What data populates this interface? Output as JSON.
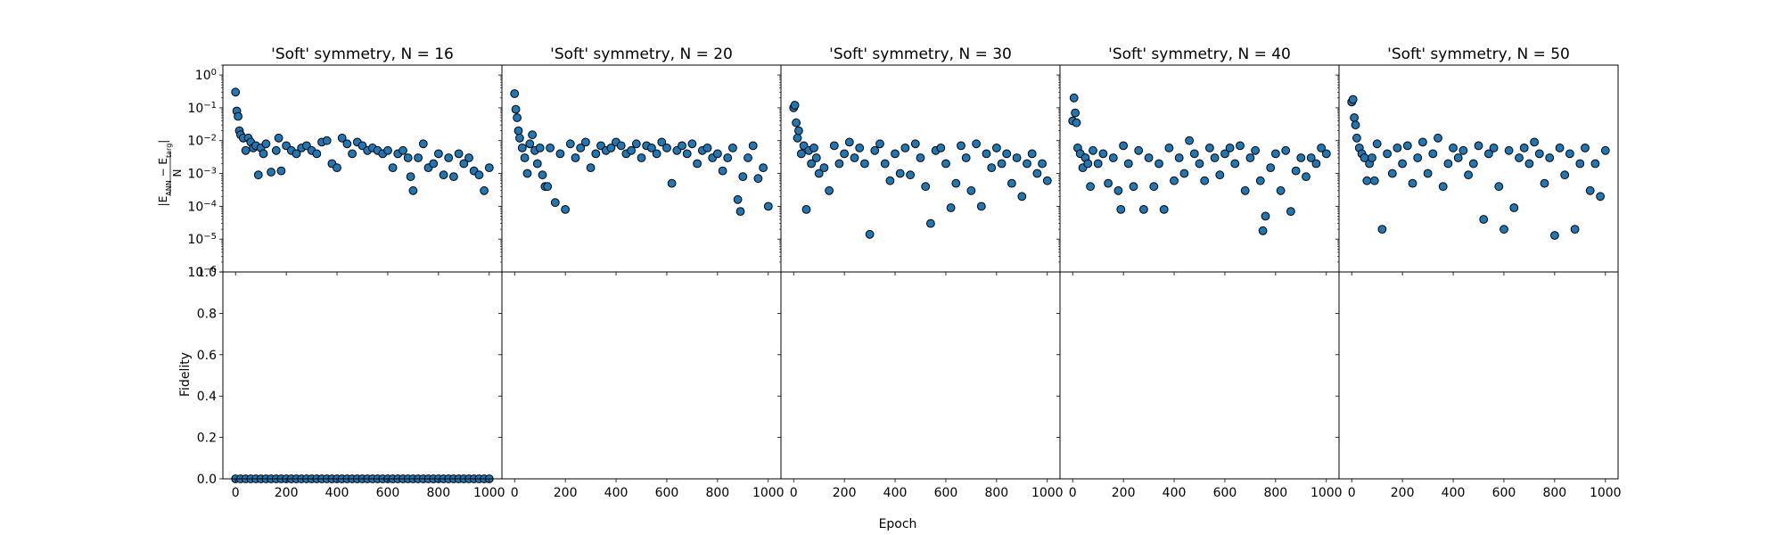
{
  "figure": {
    "xlabel": "Epoch",
    "ylabel_top": "|E_ANN − E_targ| / N",
    "ylabel_top_num": "|E",
    "ylabel_top_num_sub1": "ANN",
    "ylabel_top_num_mid": " − E",
    "ylabel_top_num_sub2": "targ",
    "ylabel_top_num_end": "|",
    "ylabel_top_den": "N",
    "ylabel_bottom": "Fidelity",
    "marker_fill": "#1f77b4",
    "marker_edge": "#000000"
  },
  "chart_data": [
    {
      "type": "scatter",
      "title": "'Soft' symmetry, N = 16",
      "N": 16,
      "xlabel": "Epoch",
      "xlim": [
        -50,
        1050
      ],
      "xticks": [
        0,
        200,
        400,
        600,
        800,
        1000
      ],
      "energy": {
        "ylabel": "|E_ANN − E_targ| / N",
        "yscale": "log",
        "ylim": [
          1e-06,
          2
        ],
        "ytick_exponents": [
          -6,
          -5,
          -4,
          -3,
          -2,
          -1,
          0
        ],
        "series": [
          {
            "x": [
              0,
              5,
              10,
              15,
              20,
              30,
              40,
              50,
              60,
              70,
              80,
              90,
              100,
              110,
              120,
              140,
              160,
              170,
              180,
              200,
              220,
              240,
              260,
              280,
              300,
              320,
              340,
              360,
              380,
              400,
              420,
              440,
              460,
              480,
              500,
              520,
              540,
              560,
              580,
              600,
              620,
              640,
              660,
              680,
              690,
              700,
              720,
              740,
              760,
              780,
              800,
              820,
              840,
              860,
              880,
              900,
              920,
              940,
              960,
              980,
              1000
            ],
            "y": [
              0.3,
              0.08,
              0.055,
              0.02,
              0.015,
              0.012,
              0.005,
              0.012,
              0.009,
              0.006,
              0.007,
              0.0009,
              0.006,
              0.004,
              0.008,
              0.0011,
              0.005,
              0.012,
              0.0012,
              0.007,
              0.005,
              0.004,
              0.006,
              0.007,
              0.005,
              0.004,
              0.009,
              0.01,
              0.002,
              0.0015,
              0.012,
              0.008,
              0.004,
              0.009,
              0.007,
              0.005,
              0.006,
              0.005,
              0.004,
              0.005,
              0.0015,
              0.004,
              0.005,
              0.003,
              0.0008,
              0.0003,
              0.003,
              0.008,
              0.0015,
              0.002,
              0.004,
              0.0009,
              0.003,
              0.0008,
              0.004,
              0.002,
              0.003,
              0.0012,
              0.0009,
              0.0003,
              0.0015
            ]
          }
        ]
      },
      "fidelity": {
        "ylabel": "Fidelity",
        "ylim": [
          0.0,
          1.0
        ],
        "yticks": [
          "0.0",
          "0.2",
          "0.4",
          "0.6",
          "0.8",
          "1.0"
        ],
        "series": [
          {
            "x_start": 0,
            "x_end": 1000,
            "x_step": 20,
            "value": 0.0
          }
        ]
      }
    },
    {
      "type": "scatter",
      "title": "'Soft' symmetry, N = 20",
      "N": 20,
      "xlabel": "Epoch",
      "xlim": [
        -50,
        1050
      ],
      "xticks": [
        0,
        200,
        400,
        600,
        800,
        1000
      ],
      "energy": {
        "yscale": "log",
        "ylim": [
          1e-06,
          2
        ],
        "series": [
          {
            "x": [
              0,
              5,
              10,
              15,
              20,
              30,
              40,
              50,
              60,
              70,
              80,
              90,
              100,
              110,
              120,
              130,
              140,
              160,
              180,
              200,
              220,
              240,
              260,
              280,
              300,
              320,
              340,
              360,
              380,
              400,
              420,
              440,
              460,
              480,
              500,
              520,
              540,
              560,
              580,
              600,
              620,
              640,
              660,
              680,
              700,
              720,
              740,
              760,
              780,
              800,
              820,
              840,
              860,
              880,
              890,
              900,
              920,
              940,
              960,
              980,
              1000
            ],
            "y": [
              0.27,
              0.09,
              0.05,
              0.02,
              0.012,
              0.006,
              0.003,
              0.001,
              0.008,
              0.015,
              0.005,
              0.002,
              0.006,
              0.0009,
              0.0004,
              0.0004,
              0.006,
              0.00013,
              0.004,
              8e-05,
              0.008,
              0.003,
              0.006,
              0.009,
              0.0015,
              0.004,
              0.007,
              0.005,
              0.006,
              0.009,
              0.007,
              0.004,
              0.005,
              0.008,
              0.003,
              0.007,
              0.006,
              0.004,
              0.009,
              0.006,
              0.0005,
              0.005,
              0.007,
              0.004,
              0.008,
              0.002,
              0.005,
              0.006,
              0.003,
              0.004,
              0.0012,
              0.003,
              0.006,
              0.00016,
              7e-05,
              0.0008,
              0.003,
              0.007,
              0.0007,
              0.0015,
              0.0001
            ]
          }
        ]
      },
      "fidelity": {
        "ylim": [
          0.0,
          1.0
        ],
        "series": []
      }
    },
    {
      "type": "scatter",
      "title": "'Soft' symmetry, N = 30",
      "N": 30,
      "xlabel": "Epoch",
      "xlim": [
        -50,
        1050
      ],
      "xticks": [
        0,
        200,
        400,
        600,
        800,
        1000
      ],
      "energy": {
        "yscale": "log",
        "ylim": [
          1e-06,
          2
        ],
        "series": [
          {
            "x": [
              0,
              5,
              10,
              15,
              20,
              30,
              40,
              50,
              60,
              70,
              80,
              90,
              100,
              120,
              140,
              160,
              180,
              200,
              220,
              240,
              260,
              280,
              300,
              320,
              340,
              360,
              380,
              400,
              420,
              440,
              460,
              480,
              500,
              520,
              540,
              560,
              580,
              600,
              620,
              640,
              660,
              680,
              700,
              720,
              740,
              760,
              780,
              800,
              820,
              840,
              860,
              880,
              900,
              920,
              940,
              960,
              980,
              1000
            ],
            "y": [
              0.1,
              0.12,
              0.035,
              0.012,
              0.02,
              0.004,
              0.007,
              8e-05,
              0.005,
              0.002,
              0.006,
              0.003,
              0.001,
              0.0015,
              0.0003,
              0.007,
              0.002,
              0.004,
              0.009,
              0.003,
              0.006,
              0.002,
              1.4e-05,
              0.005,
              0.008,
              0.002,
              0.0006,
              0.004,
              0.001,
              0.006,
              0.0009,
              0.008,
              0.003,
              0.0004,
              3e-05,
              0.005,
              0.006,
              0.002,
              9e-05,
              0.0005,
              0.007,
              0.003,
              0.0003,
              0.008,
              0.0001,
              0.004,
              0.0015,
              0.006,
              0.002,
              0.004,
              0.0005,
              0.003,
              0.0002,
              0.002,
              0.004,
              0.001,
              0.002,
              0.0006
            ]
          }
        ]
      },
      "fidelity": {
        "ylim": [
          0.0,
          1.0
        ],
        "series": []
      }
    },
    {
      "type": "scatter",
      "title": "'Soft' symmetry, N = 40",
      "N": 40,
      "xlabel": "Epoch",
      "xlim": [
        -50,
        1050
      ],
      "xticks": [
        0,
        200,
        400,
        600,
        800,
        1000
      ],
      "energy": {
        "yscale": "log",
        "ylim": [
          1e-06,
          2
        ],
        "series": [
          {
            "x": [
              0,
              5,
              10,
              15,
              20,
              30,
              40,
              50,
              60,
              70,
              80,
              100,
              120,
              140,
              160,
              180,
              190,
              200,
              220,
              240,
              260,
              280,
              300,
              320,
              340,
              360,
              380,
              400,
              420,
              440,
              460,
              480,
              500,
              520,
              540,
              560,
              580,
              600,
              620,
              640,
              660,
              680,
              700,
              720,
              740,
              750,
              760,
              780,
              800,
              820,
              840,
              860,
              880,
              900,
              920,
              940,
              960,
              980,
              1000
            ],
            "y": [
              0.04,
              0.2,
              0.07,
              0.035,
              0.006,
              0.004,
              0.0015,
              0.003,
              0.002,
              0.0004,
              0.005,
              0.002,
              0.004,
              0.0005,
              0.003,
              0.0003,
              8e-05,
              0.007,
              0.002,
              0.0004,
              0.005,
              8e-05,
              0.003,
              0.0004,
              0.002,
              8e-05,
              0.006,
              0.0006,
              0.003,
              0.001,
              0.01,
              0.004,
              0.002,
              0.0006,
              0.006,
              0.003,
              0.0009,
              0.004,
              0.006,
              0.002,
              0.007,
              0.0003,
              0.003,
              0.005,
              0.0006,
              1.8e-05,
              5e-05,
              0.0015,
              0.004,
              0.0003,
              0.005,
              7e-05,
              0.0012,
              0.003,
              0.0008,
              0.003,
              0.002,
              0.006,
              0.004
            ]
          }
        ]
      },
      "fidelity": {
        "ylim": [
          0.0,
          1.0
        ],
        "series": []
      }
    },
    {
      "type": "scatter",
      "title": "'Soft' symmetry, N = 50",
      "N": 50,
      "xlabel": "Epoch",
      "xlim": [
        -50,
        1050
      ],
      "xticks": [
        0,
        200,
        400,
        600,
        800,
        1000
      ],
      "energy": {
        "yscale": "log",
        "ylim": [
          1e-06,
          2
        ],
        "series": [
          {
            "x": [
              0,
              5,
              10,
              15,
              20,
              30,
              40,
              50,
              60,
              70,
              80,
              90,
              100,
              120,
              140,
              160,
              180,
              200,
              220,
              240,
              260,
              280,
              300,
              320,
              340,
              360,
              380,
              400,
              420,
              440,
              460,
              480,
              500,
              520,
              540,
              560,
              580,
              600,
              620,
              640,
              660,
              680,
              700,
              720,
              740,
              760,
              780,
              800,
              820,
              840,
              860,
              880,
              900,
              920,
              940,
              960,
              980,
              1000
            ],
            "y": [
              0.15,
              0.18,
              0.05,
              0.03,
              0.012,
              0.006,
              0.004,
              0.003,
              0.0006,
              0.002,
              0.003,
              0.0006,
              0.008,
              2e-05,
              0.004,
              0.001,
              0.006,
              0.002,
              0.007,
              0.0005,
              0.003,
              0.009,
              0.001,
              0.004,
              0.012,
              0.0004,
              0.002,
              0.006,
              0.003,
              0.005,
              0.0009,
              0.002,
              0.007,
              4e-05,
              0.004,
              0.006,
              0.0004,
              2e-05,
              0.005,
              9e-05,
              0.003,
              0.006,
              0.002,
              0.009,
              0.004,
              0.0005,
              0.003,
              1.3e-05,
              0.006,
              0.0009,
              0.004,
              2e-05,
              0.002,
              0.006,
              0.0003,
              0.002,
              0.0002,
              0.005
            ]
          }
        ]
      },
      "fidelity": {
        "ylim": [
          0.0,
          1.0
        ],
        "series": []
      }
    }
  ]
}
